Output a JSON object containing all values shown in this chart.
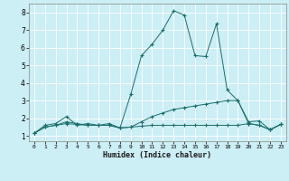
{
  "xlabel": "Humidex (Indice chaleur)",
  "background_color": "#cceef5",
  "grid_color": "#ffffff",
  "line_color": "#1a6e6a",
  "xlim": [
    -0.5,
    23.5
  ],
  "ylim": [
    0.7,
    8.5
  ],
  "xtick_labels": [
    "0",
    "1",
    "2",
    "3",
    "4",
    "5",
    "6",
    "7",
    "8",
    "9",
    "10",
    "11",
    "12",
    "13",
    "14",
    "15",
    "16",
    "17",
    "18",
    "19",
    "20",
    "21",
    "22",
    "23"
  ],
  "yticks": [
    1,
    2,
    3,
    4,
    5,
    6,
    7,
    8
  ],
  "series": [
    {
      "x": [
        0,
        1,
        2,
        3,
        4,
        5,
        6,
        7,
        8,
        9,
        10,
        11,
        12,
        13,
        14,
        15,
        16,
        17,
        18,
        19,
        20,
        21,
        22,
        23
      ],
      "y": [
        1.15,
        1.6,
        1.7,
        2.1,
        1.6,
        1.7,
        1.6,
        1.7,
        1.45,
        3.35,
        5.55,
        6.2,
        7.0,
        8.1,
        7.85,
        5.55,
        5.5,
        7.35,
        3.6,
        3.0,
        1.8,
        1.85,
        1.35,
        1.65
      ]
    },
    {
      "x": [
        0,
        1,
        2,
        3,
        4,
        5,
        6,
        7,
        8,
        9,
        10,
        11,
        12,
        13,
        14,
        15,
        16,
        17,
        18,
        19,
        20,
        21,
        22,
        23
      ],
      "y": [
        1.15,
        1.5,
        1.6,
        1.8,
        1.7,
        1.6,
        1.6,
        1.6,
        1.45,
        1.5,
        1.8,
        2.1,
        2.3,
        2.5,
        2.6,
        2.7,
        2.8,
        2.9,
        3.0,
        3.0,
        1.7,
        1.6,
        1.35,
        1.65
      ]
    },
    {
      "x": [
        0,
        1,
        2,
        3,
        4,
        5,
        6,
        7,
        8,
        9,
        10,
        11,
        12,
        13,
        14,
        15,
        16,
        17,
        18,
        19,
        20,
        21,
        22,
        23
      ],
      "y": [
        1.15,
        1.5,
        1.6,
        1.7,
        1.65,
        1.6,
        1.6,
        1.6,
        1.45,
        1.5,
        1.55,
        1.6,
        1.6,
        1.6,
        1.6,
        1.6,
        1.6,
        1.6,
        1.6,
        1.6,
        1.7,
        1.6,
        1.35,
        1.65
      ]
    }
  ]
}
